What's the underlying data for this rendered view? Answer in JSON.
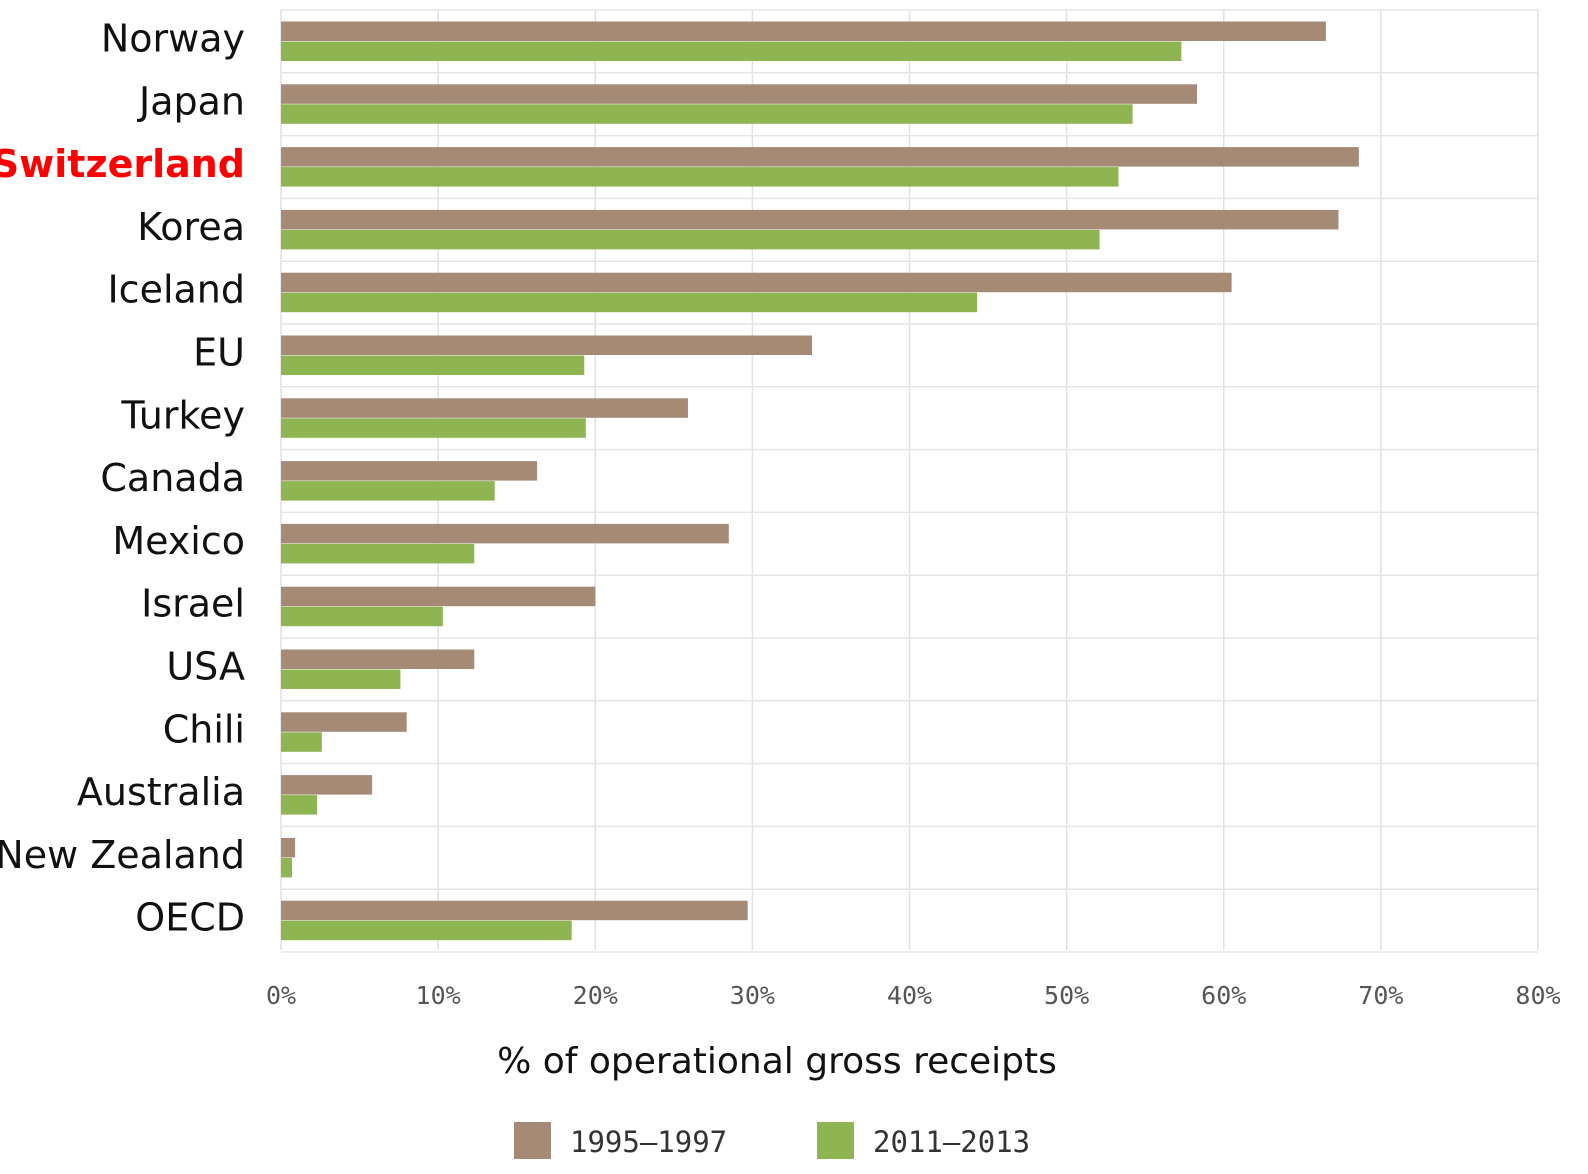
{
  "chart_data": {
    "type": "bar",
    "orientation": "horizontal",
    "categories": [
      "Norway",
      "Japan",
      "Switzerland",
      "Korea",
      "Iceland",
      "EU",
      "Turkey",
      "Canada",
      "Mexico",
      "Israel",
      "USA",
      "Chili",
      "Australia",
      "New Zealand",
      "OECD"
    ],
    "highlight_category": "Switzerland",
    "series": [
      {
        "name": "1995–1997",
        "color": "#a58a76",
        "values": [
          66.5,
          58.3,
          68.6,
          67.3,
          60.5,
          33.8,
          25.9,
          16.3,
          28.5,
          20.0,
          12.3,
          8.0,
          5.8,
          0.9,
          29.7
        ]
      },
      {
        "name": "2011–2013",
        "color": "#8fb552",
        "values": [
          57.3,
          54.2,
          53.3,
          52.1,
          44.3,
          19.3,
          19.4,
          13.6,
          12.3,
          10.3,
          7.6,
          2.6,
          2.3,
          0.7,
          18.5
        ]
      }
    ],
    "x_ticks": [
      "0%",
      "10%",
      "20%",
      "30%",
      "40%",
      "50%",
      "60%",
      "70%",
      "80%"
    ],
    "xlabel": "% of operational gross receipts",
    "ylabel": "",
    "xlim": [
      0,
      80
    ],
    "grid": true,
    "legend_position": "bottom",
    "highlight_color": "#ff0000"
  }
}
